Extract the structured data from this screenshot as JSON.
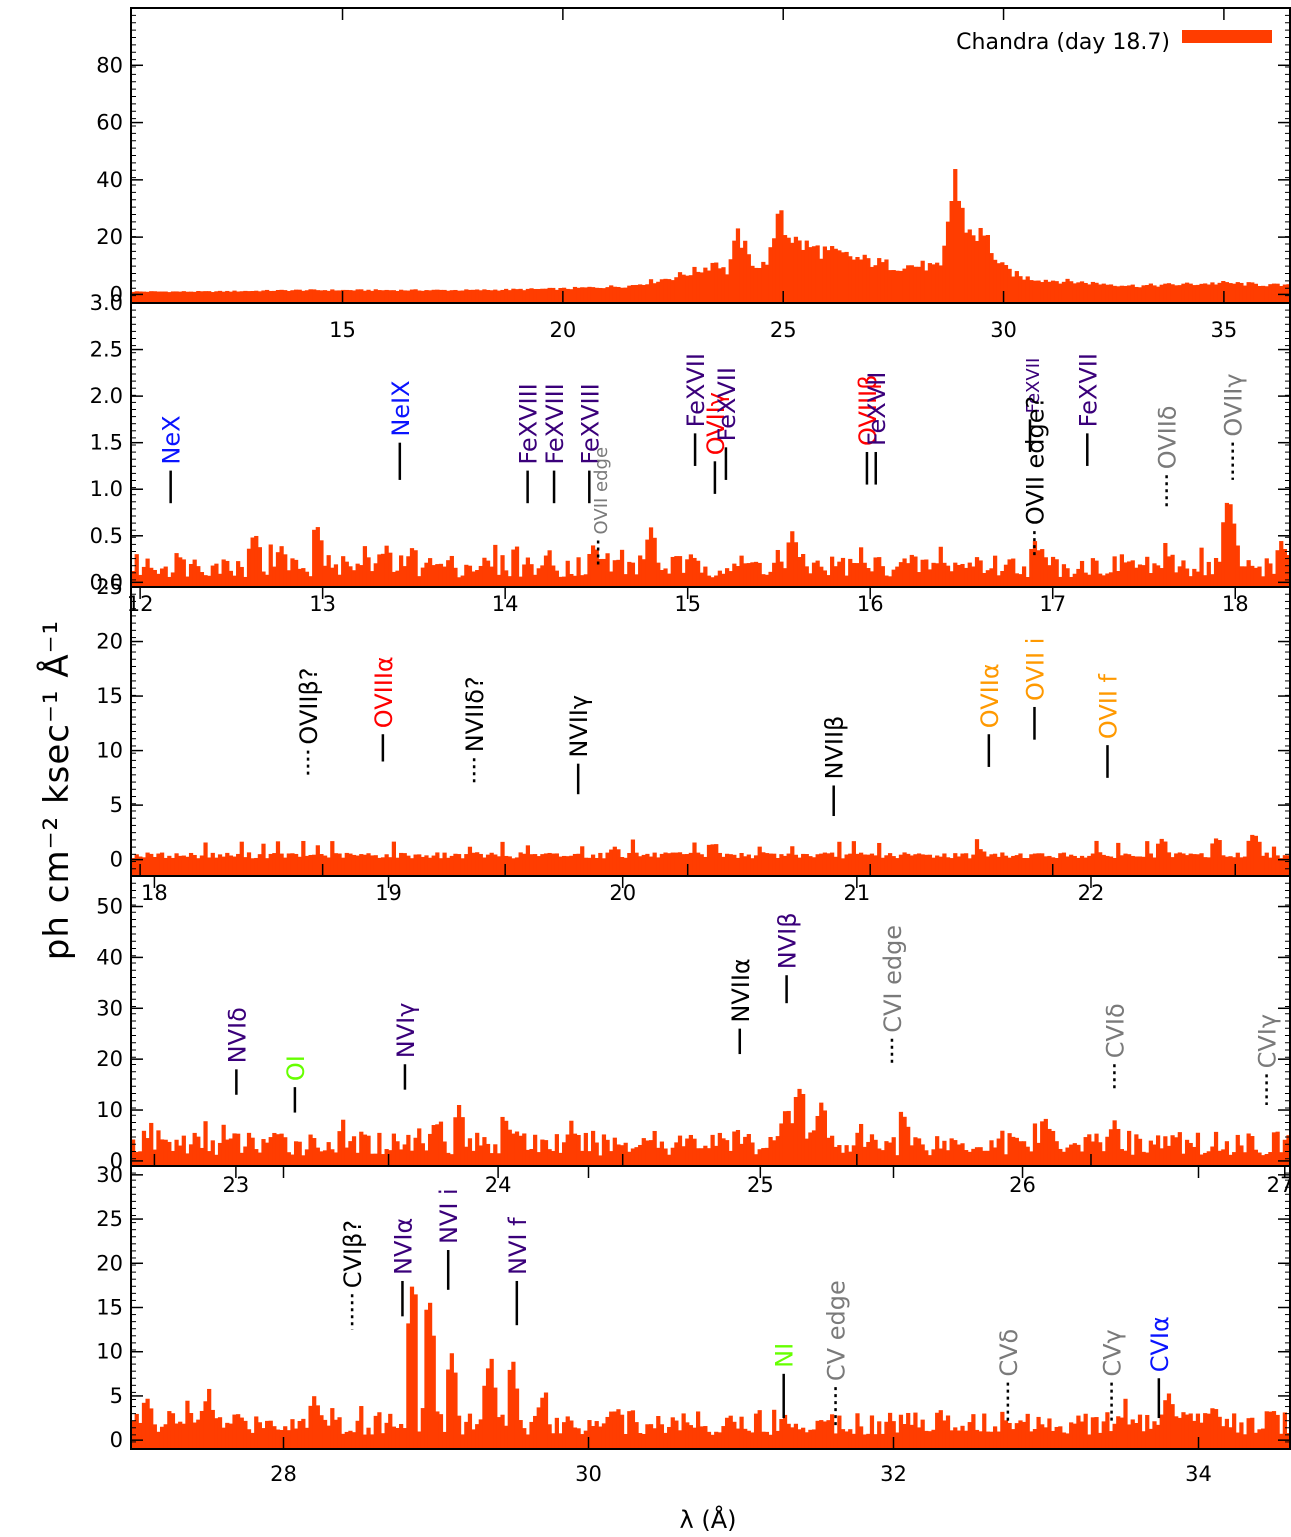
{
  "figure": {
    "ylabel": "ph cm⁻² ksec⁻¹ Å⁻¹",
    "xlabel": "λ (Å)",
    "legend": "Chandra (day 18.7)",
    "colors": {
      "spectrum": "#ff3d00",
      "blue": "#0a14ff",
      "red": "#ff0000",
      "purple": "#3a007a",
      "orange": "#ff9900",
      "green": "#66ff00",
      "gray": "#7a7a7a",
      "black": "#000000"
    }
  },
  "chart_data": [
    {
      "type": "bar",
      "panel": 1,
      "legend": "Chandra (day 18.7)",
      "xlim": [
        10.2,
        36.5
      ],
      "ylim": [
        -3,
        100
      ],
      "yticks": [
        0,
        20,
        40,
        60,
        80
      ],
      "xticks": [
        15,
        20,
        25,
        30,
        35
      ],
      "xtick_position": "inside-top of panel 2",
      "features": [
        {
          "x": 23.5,
          "y": 12
        },
        {
          "x": 24.0,
          "y": 21
        },
        {
          "x": 24.4,
          "y": 10
        },
        {
          "x": 24.9,
          "y": 36
        },
        {
          "x": 25.3,
          "y": 18
        },
        {
          "x": 26.5,
          "y": 12
        },
        {
          "x": 28.9,
          "y": 44
        },
        {
          "x": 29.3,
          "y": 22
        },
        {
          "x": 29.8,
          "y": 8
        }
      ],
      "profile": [
        [
          10.2,
          1
        ],
        [
          12,
          1
        ],
        [
          14,
          1.5
        ],
        [
          16,
          1.5
        ],
        [
          18,
          1.5
        ],
        [
          20,
          2
        ],
        [
          21.5,
          3
        ],
        [
          22.5,
          6
        ],
        [
          23.2,
          9
        ],
        [
          23.5,
          12
        ],
        [
          23.7,
          7
        ],
        [
          23.9,
          17
        ],
        [
          24.0,
          21
        ],
        [
          24.2,
          13
        ],
        [
          24.5,
          9
        ],
        [
          24.8,
          17
        ],
        [
          24.9,
          36
        ],
        [
          25.0,
          24
        ],
        [
          25.3,
          18
        ],
        [
          25.7,
          16
        ],
        [
          26.2,
          14
        ],
        [
          26.8,
          12
        ],
        [
          27.5,
          10
        ],
        [
          28.2,
          10
        ],
        [
          28.6,
          9
        ],
        [
          28.9,
          44
        ],
        [
          29.0,
          30
        ],
        [
          29.2,
          22
        ],
        [
          29.6,
          20
        ],
        [
          29.9,
          10
        ],
        [
          30.4,
          6
        ],
        [
          31,
          5
        ],
        [
          32,
          4
        ],
        [
          33,
          3
        ],
        [
          34,
          3.5
        ],
        [
          35,
          4
        ],
        [
          36.5,
          3
        ]
      ]
    },
    {
      "type": "bar",
      "panel": 2,
      "xlim": [
        10.2,
        36.5
      ],
      "ylim": [
        -0.05,
        3.0
      ],
      "yticks": [
        "0.0",
        "0.5",
        "1.0",
        "1.5",
        "2.0",
        "2.5",
        "3.0"
      ],
      "lines": [
        {
          "label": "NeX",
          "x": 11.1,
          "top": 1.2,
          "bot": 0.85,
          "color": "blue",
          "style": "solid"
        },
        {
          "label": "NeIX",
          "x": 16.3,
          "top": 1.5,
          "bot": 1.1,
          "color": "blue",
          "style": "solid"
        },
        {
          "label": "FeXVIII",
          "x": 19.2,
          "top": 1.2,
          "bot": 0.85,
          "color": "purple",
          "style": "solid"
        },
        {
          "label": "FeXVIII",
          "x": 19.8,
          "top": 1.2,
          "bot": 0.85,
          "color": "purple",
          "style": "solid"
        },
        {
          "label": "FeXVIII",
          "x": 20.6,
          "top": 1.2,
          "bot": 0.85,
          "color": "purple",
          "style": "solid"
        },
        {
          "label": "OVII edge",
          "x": 20.8,
          "top": 0.45,
          "bot": 0.15,
          "color": "gray",
          "style": "dotted",
          "small": true
        },
        {
          "label": "FeXVII",
          "x": 23.0,
          "top": 1.6,
          "bot": 1.25,
          "color": "purple",
          "style": "solid"
        },
        {
          "label": "OVIIγ",
          "x": 23.45,
          "top": 1.3,
          "bot": 0.95,
          "color": "red",
          "style": "solid"
        },
        {
          "label": "FeXVII",
          "x": 23.7,
          "top": 1.45,
          "bot": 1.1,
          "color": "purple",
          "style": "solid"
        },
        {
          "label": "OVIIIβ",
          "x": 26.9,
          "top": 1.4,
          "bot": 1.05,
          "color": "red",
          "style": "solid"
        },
        {
          "label": "FeXVII",
          "x": 27.1,
          "top": 1.4,
          "bot": 1.05,
          "color": "purple",
          "style": "solid"
        },
        {
          "label": "FeXVII",
          "x": 30.6,
          "top": 1.75,
          "bot": 1.4,
          "color": "purple",
          "style": "solid",
          "small": true
        },
        {
          "label": "OVII edge?",
          "x": 30.7,
          "top": 0.55,
          "bot": 0.25,
          "color": "black",
          "style": "dotted"
        },
        {
          "label": "FeXVII",
          "x": 31.9,
          "top": 1.6,
          "bot": 1.25,
          "color": "purple",
          "style": "solid"
        },
        {
          "label": "OVIIδ",
          "x": 33.7,
          "top": 1.15,
          "bot": 0.8,
          "color": "gray",
          "style": "dotted"
        },
        {
          "label": "OVIIγ",
          "x": 35.2,
          "top": 1.5,
          "bot": 1.1,
          "color": "gray",
          "style": "dotted"
        }
      ],
      "features": [
        {
          "x": 13.0,
          "y": 0.55
        },
        {
          "x": 13.6,
          "y": 0.4
        },
        {
          "x": 14.4,
          "y": 0.65
        },
        {
          "x": 16.0,
          "y": 0.4
        },
        {
          "x": 16.6,
          "y": 0.4
        },
        {
          "x": 20.7,
          "y": 0.42
        },
        {
          "x": 22.0,
          "y": 0.6
        },
        {
          "x": 25.2,
          "y": 0.55
        },
        {
          "x": 30.7,
          "y": 0.45
        },
        {
          "x": 35.1,
          "y": 0.95
        },
        {
          "x": 36.3,
          "y": 0.45
        }
      ],
      "baseline": 0.18
    },
    {
      "type": "bar",
      "panel": 3,
      "xlim": [
        11.95,
        18.3
      ],
      "ylim": [
        -1.5,
        25
      ],
      "yticks": [
        0,
        5,
        10,
        15,
        20,
        25
      ],
      "xticks": [
        12,
        13,
        14,
        15,
        16,
        17,
        18
      ],
      "lines": [
        {
          "label": "OVIIβ?",
          "x": 12.92,
          "top": 10.0,
          "bot": 7.5,
          "color": "black",
          "style": "dotted"
        },
        {
          "label": "OVIIIα",
          "x": 13.33,
          "top": 11.5,
          "bot": 9.0,
          "color": "red",
          "style": "solid"
        },
        {
          "label": "NVIIδ?",
          "x": 13.83,
          "top": 9.3,
          "bot": 7.0,
          "color": "black",
          "style": "dotted"
        },
        {
          "label": "NVIIγ",
          "x": 14.4,
          "top": 8.8,
          "bot": 6.0,
          "color": "black",
          "style": "solid"
        },
        {
          "label": "NVIIβ",
          "x": 15.8,
          "top": 6.8,
          "bot": 4.0,
          "color": "black",
          "style": "solid"
        },
        {
          "label": "OVIIα",
          "x": 16.65,
          "top": 11.5,
          "bot": 8.5,
          "color": "orange",
          "style": "solid"
        },
        {
          "label": "OVII i",
          "x": 16.9,
          "top": 14.0,
          "bot": 11.0,
          "color": "orange",
          "style": "solid"
        },
        {
          "label": "OVII f",
          "x": 17.3,
          "top": 10.5,
          "bot": 7.5,
          "color": "orange",
          "style": "solid"
        }
      ],
      "features": [
        {
          "x": 14.6,
          "y": 1.2
        },
        {
          "x": 14.7,
          "y": 0.8
        },
        {
          "x": 16.6,
          "y": 1.0
        },
        {
          "x": 17.6,
          "y": 2.0
        },
        {
          "x": 17.9,
          "y": 2.1
        },
        {
          "x": 18.1,
          "y": 2.5
        }
      ],
      "baseline": 0.4
    },
    {
      "type": "bar",
      "panel": 4,
      "xlim": [
        17.9,
        22.85
      ],
      "ylim": [
        -1,
        56
      ],
      "yticks": [
        0,
        10,
        20,
        30,
        40,
        50
      ],
      "xticks": [
        18,
        19,
        20,
        21,
        22
      ],
      "lines": [
        {
          "label": "NVIδ",
          "x": 18.35,
          "top": 18.0,
          "bot": 13.0,
          "color": "purple",
          "style": "solid"
        },
        {
          "label": "OI",
          "x": 18.6,
          "top": 14.5,
          "bot": 9.5,
          "color": "green",
          "style": "solid"
        },
        {
          "label": "NVIγ",
          "x": 19.07,
          "top": 19.0,
          "bot": 14.0,
          "color": "purple",
          "style": "solid"
        },
        {
          "label": "NVIIα",
          "x": 20.5,
          "top": 26.0,
          "bot": 21.0,
          "color": "black",
          "style": "solid"
        },
        {
          "label": "NVIβ",
          "x": 20.7,
          "top": 36.5,
          "bot": 31.0,
          "color": "purple",
          "style": "solid"
        },
        {
          "label": "CVI edge",
          "x": 21.15,
          "top": 24.0,
          "bot": 19.0,
          "color": "gray",
          "style": "dotted"
        },
        {
          "label": "CVIδ",
          "x": 22.1,
          "top": 19.0,
          "bot": 14.0,
          "color": "gray",
          "style": "dotted"
        },
        {
          "label": "CVIγ",
          "x": 22.75,
          "top": 17.0,
          "bot": 11.0,
          "color": "gray",
          "style": "dotted"
        }
      ],
      "features": [
        {
          "x": 18.5,
          "y": 5
        },
        {
          "x": 19.2,
          "y": 8
        },
        {
          "x": 19.3,
          "y": 11
        },
        {
          "x": 19.5,
          "y": 8
        },
        {
          "x": 20.7,
          "y": 11
        },
        {
          "x": 20.75,
          "y": 15
        },
        {
          "x": 20.85,
          "y": 12
        },
        {
          "x": 21.2,
          "y": 9
        },
        {
          "x": 21.8,
          "y": 9
        },
        {
          "x": 22.1,
          "y": 8
        }
      ],
      "baseline": 3.5
    },
    {
      "type": "bar",
      "panel": 5,
      "xlim": [
        27.0,
        34.6
      ],
      "ylim": [
        -1,
        31
      ],
      "yticks": [
        0,
        5,
        10,
        15,
        20,
        25,
        30
      ],
      "xticks": [
        28,
        30,
        32,
        34
      ],
      "xticks_top": [
        23,
        24,
        25,
        26,
        27
      ],
      "lines": [
        {
          "label": "CVIβ?",
          "x": 28.45,
          "top": 16.5,
          "bot": 12.5,
          "color": "black",
          "style": "dotted"
        },
        {
          "label": "NVIα",
          "x": 28.78,
          "top": 18.0,
          "bot": 14.0,
          "color": "purple",
          "style": "solid"
        },
        {
          "label": "NVI i",
          "x": 29.08,
          "top": 21.5,
          "bot": 17.0,
          "color": "purple",
          "style": "solid"
        },
        {
          "label": "NVI f",
          "x": 29.53,
          "top": 18.0,
          "bot": 13.0,
          "color": "purple",
          "style": "solid"
        },
        {
          "label": "NI",
          "x": 31.28,
          "top": 7.5,
          "bot": 2.5,
          "color": "green",
          "style": "solid"
        },
        {
          "label": "CV edge",
          "x": 31.62,
          "top": 6.0,
          "bot": 1.5,
          "color": "gray",
          "style": "dotted"
        },
        {
          "label": "CVδ",
          "x": 32.75,
          "top": 6.5,
          "bot": 2.0,
          "color": "gray",
          "style": "dotted"
        },
        {
          "label": "CVγ",
          "x": 33.43,
          "top": 6.5,
          "bot": 2.0,
          "color": "gray",
          "style": "dotted"
        },
        {
          "label": "CVIα",
          "x": 33.74,
          "top": 7.0,
          "bot": 2.5,
          "color": "blue",
          "style": "solid"
        }
      ],
      "features": [
        {
          "x": 27.1,
          "y": 5
        },
        {
          "x": 27.5,
          "y": 5
        },
        {
          "x": 28.2,
          "y": 5
        },
        {
          "x": 28.85,
          "y": 19
        },
        {
          "x": 28.95,
          "y": 17
        },
        {
          "x": 29.1,
          "y": 10
        },
        {
          "x": 29.35,
          "y": 9
        },
        {
          "x": 29.5,
          "y": 8
        },
        {
          "x": 29.7,
          "y": 5
        },
        {
          "x": 33.8,
          "y": 5.5
        },
        {
          "x": 34.1,
          "y": 4
        }
      ],
      "baseline": 2.0
    }
  ]
}
